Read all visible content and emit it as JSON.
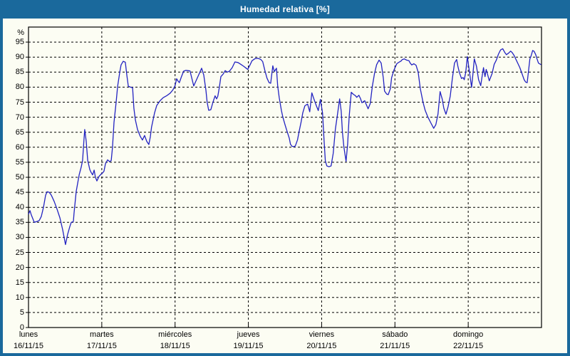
{
  "window": {
    "title": "Humedad relativa [%]",
    "title_bg": "#1a699c",
    "border_color": "#1a699c",
    "content_bg": "#fcfdf3"
  },
  "chart_data": {
    "type": "line",
    "title": "Humedad relativa [%]",
    "ylabel": "%",
    "ylim": [
      0,
      100
    ],
    "yticks": [
      0,
      5,
      10,
      15,
      20,
      25,
      30,
      35,
      40,
      45,
      50,
      55,
      60,
      65,
      70,
      75,
      80,
      85,
      90,
      95
    ],
    "y_unit_label": "%",
    "grid": "dashed",
    "grid_color": "#000000",
    "line_color": "#2323c1",
    "x_range_hours": [
      0,
      168
    ],
    "days": [
      {
        "name": "lunes",
        "date": "16/11/15"
      },
      {
        "name": "martes",
        "date": "17/11/15"
      },
      {
        "name": "miércoles",
        "date": "18/11/15"
      },
      {
        "name": "jueves",
        "date": "19/11/15"
      },
      {
        "name": "viernes",
        "date": "20/11/15"
      },
      {
        "name": "sábado",
        "date": "21/11/15"
      },
      {
        "name": "domingo",
        "date": "22/11/15"
      }
    ],
    "series": [
      {
        "name": "Humedad relativa",
        "unit": "%",
        "points": [
          [
            0,
            37.7
          ],
          [
            0.5,
            38.9
          ],
          [
            0.9,
            37.5
          ],
          [
            1.9,
            35.0
          ],
          [
            2.8,
            35.3
          ],
          [
            3.5,
            35.6
          ],
          [
            4.2,
            37.0
          ],
          [
            4.9,
            40.0
          ],
          [
            5.6,
            44.0
          ],
          [
            6.1,
            45.2
          ],
          [
            6.8,
            45.0
          ],
          [
            7.5,
            44.0
          ],
          [
            8.4,
            42.0
          ],
          [
            9.3,
            39.5
          ],
          [
            10.3,
            36.5
          ],
          [
            11.2,
            32.5
          ],
          [
            12.1,
            27.6
          ],
          [
            12.8,
            31.0
          ],
          [
            13.5,
            33.5
          ],
          [
            14.0,
            35.0
          ],
          [
            14.7,
            35.3
          ],
          [
            14.9,
            38.0
          ],
          [
            15.4,
            43.0
          ],
          [
            15.6,
            45.2
          ],
          [
            16.1,
            48.0
          ],
          [
            16.6,
            50.8
          ],
          [
            17.3,
            53.5
          ],
          [
            17.7,
            55.6
          ],
          [
            18.2,
            63.0
          ],
          [
            18.4,
            65.9
          ],
          [
            18.9,
            62.0
          ],
          [
            19.4,
            55.6
          ],
          [
            20.1,
            52.5
          ],
          [
            20.5,
            51.6
          ],
          [
            21.0,
            50.8
          ],
          [
            21.5,
            52.4
          ],
          [
            21.9,
            50.0
          ],
          [
            22.4,
            48.8
          ],
          [
            23.1,
            50.3
          ],
          [
            23.8,
            51.1
          ],
          [
            24.3,
            51.5
          ],
          [
            24.7,
            52.0
          ],
          [
            25.2,
            54.5
          ],
          [
            25.9,
            55.8
          ],
          [
            26.6,
            55.2
          ],
          [
            27.1,
            55.6
          ],
          [
            27.5,
            60.0
          ],
          [
            28.0,
            68.3
          ],
          [
            28.7,
            75.0
          ],
          [
            29.2,
            80.3
          ],
          [
            29.9,
            85.0
          ],
          [
            30.3,
            87.4
          ],
          [
            31.0,
            88.6
          ],
          [
            31.7,
            88.3
          ],
          [
            32.2,
            84.0
          ],
          [
            32.7,
            80.3
          ],
          [
            33.4,
            80.0
          ],
          [
            34.1,
            79.8
          ],
          [
            34.5,
            73.0
          ],
          [
            35.0,
            69.1
          ],
          [
            35.7,
            65.9
          ],
          [
            36.6,
            63.6
          ],
          [
            37.3,
            62.4
          ],
          [
            38.0,
            63.9
          ],
          [
            38.7,
            62.0
          ],
          [
            39.4,
            60.9
          ],
          [
            39.9,
            63.5
          ],
          [
            40.3,
            66.7
          ],
          [
            41.3,
            71.5
          ],
          [
            42.0,
            73.9
          ],
          [
            43.1,
            75.5
          ],
          [
            44.1,
            76.5
          ],
          [
            45.2,
            77.1
          ],
          [
            46.4,
            78.0
          ],
          [
            47.3,
            79.1
          ],
          [
            48.0,
            80.5
          ],
          [
            48.5,
            82.8
          ],
          [
            49.0,
            82.0
          ],
          [
            49.4,
            81.5
          ],
          [
            50.1,
            83.5
          ],
          [
            50.8,
            85.3
          ],
          [
            51.5,
            85.6
          ],
          [
            52.2,
            85.5
          ],
          [
            52.9,
            85.4
          ],
          [
            53.6,
            82.5
          ],
          [
            54.1,
            80.4
          ],
          [
            54.8,
            82.0
          ],
          [
            55.7,
            84.0
          ],
          [
            56.7,
            86.3
          ],
          [
            57.4,
            84.0
          ],
          [
            58.1,
            79.0
          ],
          [
            58.5,
            75.0
          ],
          [
            59.0,
            72.3
          ],
          [
            59.7,
            72.5
          ],
          [
            60.4,
            75.0
          ],
          [
            61.1,
            77.1
          ],
          [
            61.6,
            76.1
          ],
          [
            62.0,
            77.0
          ],
          [
            62.5,
            80.0
          ],
          [
            63.0,
            83.5
          ],
          [
            63.7,
            84.3
          ],
          [
            64.4,
            85.5
          ],
          [
            65.1,
            85.0
          ],
          [
            65.8,
            85.3
          ],
          [
            66.7,
            86.5
          ],
          [
            67.6,
            88.4
          ],
          [
            68.6,
            88.2
          ],
          [
            69.5,
            87.6
          ],
          [
            70.4,
            87.0
          ],
          [
            71.4,
            86.2
          ],
          [
            71.8,
            85.9
          ],
          [
            72.5,
            87.3
          ],
          [
            73.2,
            88.8
          ],
          [
            74.2,
            89.5
          ],
          [
            75.1,
            89.6
          ],
          [
            76.0,
            89.3
          ],
          [
            76.7,
            88.5
          ],
          [
            77.4,
            85.6
          ],
          [
            78.1,
            83.0
          ],
          [
            78.8,
            81.5
          ],
          [
            79.3,
            81.3
          ],
          [
            80.0,
            87.1
          ],
          [
            80.5,
            85.2
          ],
          [
            81.2,
            86.3
          ],
          [
            81.6,
            80.5
          ],
          [
            82.1,
            76.5
          ],
          [
            82.8,
            72.3
          ],
          [
            83.3,
            70.0
          ],
          [
            84.0,
            67.5
          ],
          [
            84.6,
            65.5
          ],
          [
            85.4,
            63.0
          ],
          [
            85.8,
            61.0
          ],
          [
            86.3,
            60.3
          ],
          [
            87.0,
            60.2
          ],
          [
            87.4,
            60.5
          ],
          [
            88.1,
            62.5
          ],
          [
            88.6,
            65.1
          ],
          [
            89.3,
            68.5
          ],
          [
            89.8,
            71.4
          ],
          [
            90.5,
            73.8
          ],
          [
            91.4,
            74.4
          ],
          [
            92.1,
            71.8
          ],
          [
            92.8,
            78.1
          ],
          [
            93.5,
            76.0
          ],
          [
            94.2,
            74.0
          ],
          [
            94.9,
            72.2
          ],
          [
            95.6,
            75.9
          ],
          [
            96.3,
            71.4
          ],
          [
            96.8,
            62.0
          ],
          [
            97.2,
            55.5
          ],
          [
            97.7,
            53.8
          ],
          [
            98.4,
            53.5
          ],
          [
            99.1,
            53.8
          ],
          [
            99.8,
            58.0
          ],
          [
            100.5,
            66.0
          ],
          [
            101.2,
            71.0
          ],
          [
            101.9,
            76.1
          ],
          [
            102.4,
            72.0
          ],
          [
            102.8,
            65.0
          ],
          [
            103.3,
            60.0
          ],
          [
            104.0,
            55.3
          ],
          [
            104.5,
            61.0
          ],
          [
            105.0,
            70.0
          ],
          [
            105.7,
            78.3
          ],
          [
            106.4,
            77.6
          ],
          [
            107.0,
            77.2
          ],
          [
            107.5,
            76.6
          ],
          [
            108.2,
            77.3
          ],
          [
            108.7,
            76.2
          ],
          [
            109.2,
            74.8
          ],
          [
            110.1,
            75.5
          ],
          [
            110.5,
            74.5
          ],
          [
            111.2,
            72.8
          ],
          [
            111.9,
            74.5
          ],
          [
            112.6,
            80.3
          ],
          [
            113.3,
            84.5
          ],
          [
            114.0,
            87.5
          ],
          [
            114.8,
            89.0
          ],
          [
            115.5,
            88.0
          ],
          [
            116.2,
            83.0
          ],
          [
            116.6,
            78.7
          ],
          [
            117.3,
            77.7
          ],
          [
            117.8,
            77.5
          ],
          [
            118.5,
            79.5
          ],
          [
            118.9,
            83.1
          ],
          [
            119.6,
            85.5
          ],
          [
            120.6,
            87.8
          ],
          [
            121.3,
            88.3
          ],
          [
            122.0,
            88.7
          ],
          [
            122.4,
            89.2
          ],
          [
            123.1,
            89.4
          ],
          [
            123.8,
            89.0
          ],
          [
            124.6,
            88.8
          ],
          [
            125.0,
            88.0
          ],
          [
            125.5,
            87.4
          ],
          [
            126.2,
            87.8
          ],
          [
            126.9,
            87.3
          ],
          [
            127.6,
            85.0
          ],
          [
            128.3,
            79.5
          ],
          [
            129.2,
            75.0
          ],
          [
            129.9,
            72.3
          ],
          [
            130.8,
            70.0
          ],
          [
            131.8,
            68.0
          ],
          [
            132.7,
            66.3
          ],
          [
            133.4,
            67.5
          ],
          [
            134.1,
            71.0
          ],
          [
            134.8,
            78.5
          ],
          [
            135.5,
            76.0
          ],
          [
            136.0,
            73.0
          ],
          [
            136.7,
            71.0
          ],
          [
            137.4,
            73.5
          ],
          [
            138.1,
            77.0
          ],
          [
            138.8,
            82.9
          ],
          [
            139.5,
            88.0
          ],
          [
            140.2,
            89.2
          ],
          [
            140.6,
            87.0
          ],
          [
            141.1,
            84.9
          ],
          [
            141.8,
            82.9
          ],
          [
            142.3,
            83.2
          ],
          [
            142.7,
            82.5
          ],
          [
            143.2,
            85.0
          ],
          [
            143.7,
            90.2
          ],
          [
            144.4,
            85.0
          ],
          [
            145.1,
            79.9
          ],
          [
            145.5,
            84.0
          ],
          [
            146.0,
            89.4
          ],
          [
            146.7,
            87.0
          ],
          [
            147.4,
            82.5
          ],
          [
            148.1,
            80.5
          ],
          [
            148.6,
            84.0
          ],
          [
            149.0,
            86.5
          ],
          [
            149.5,
            83.5
          ],
          [
            149.9,
            85.9
          ],
          [
            150.4,
            84.0
          ],
          [
            150.9,
            82.1
          ],
          [
            151.8,
            84.5
          ],
          [
            152.5,
            87.6
          ],
          [
            153.2,
            89.0
          ],
          [
            153.9,
            91.0
          ],
          [
            154.6,
            92.4
          ],
          [
            155.3,
            92.8
          ],
          [
            156.0,
            91.5
          ],
          [
            156.5,
            90.8
          ],
          [
            157.2,
            91.3
          ],
          [
            157.9,
            92.0
          ],
          [
            158.4,
            91.5
          ],
          [
            159.1,
            90.4
          ],
          [
            159.5,
            89.5
          ],
          [
            160.2,
            88.0
          ],
          [
            160.9,
            86.5
          ],
          [
            161.6,
            84.5
          ],
          [
            162.3,
            82.5
          ],
          [
            162.8,
            81.7
          ],
          [
            163.3,
            81.5
          ],
          [
            163.7,
            85.0
          ],
          [
            164.2,
            89.4
          ],
          [
            164.6,
            90.4
          ],
          [
            165.1,
            92.2
          ],
          [
            165.6,
            91.9
          ],
          [
            166.1,
            90.8
          ],
          [
            166.5,
            89.5
          ],
          [
            167.0,
            88.0
          ],
          [
            167.5,
            87.7
          ],
          [
            167.9,
            87.5
          ]
        ]
      }
    ]
  }
}
